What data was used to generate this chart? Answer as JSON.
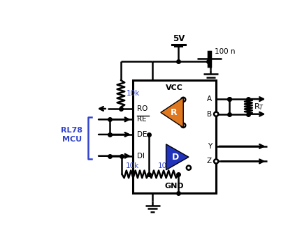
{
  "bg_color": "#ffffff",
  "line_color": "#000000",
  "orange_color": "#e07820",
  "blue_tri_color": "#2233bb",
  "blue_label_color": "#3344cc",
  "vcc_label": "VCC",
  "gnd_label": "GND",
  "ro_label": "RO",
  "re_label": "RE",
  "de_label": "DE",
  "di_label": "DI",
  "a_label": "A",
  "b_label": "B",
  "y_label": "Y",
  "z_label": "Z",
  "r_label": "R",
  "d_label": "D",
  "rt_label": "R",
  "mcu_label": "RL78\nMCU",
  "v5_label": "5V",
  "cap_label": "100 n",
  "r10k_top": "10k",
  "r10k_bot1": "10k",
  "r10k_bot2": "10k"
}
